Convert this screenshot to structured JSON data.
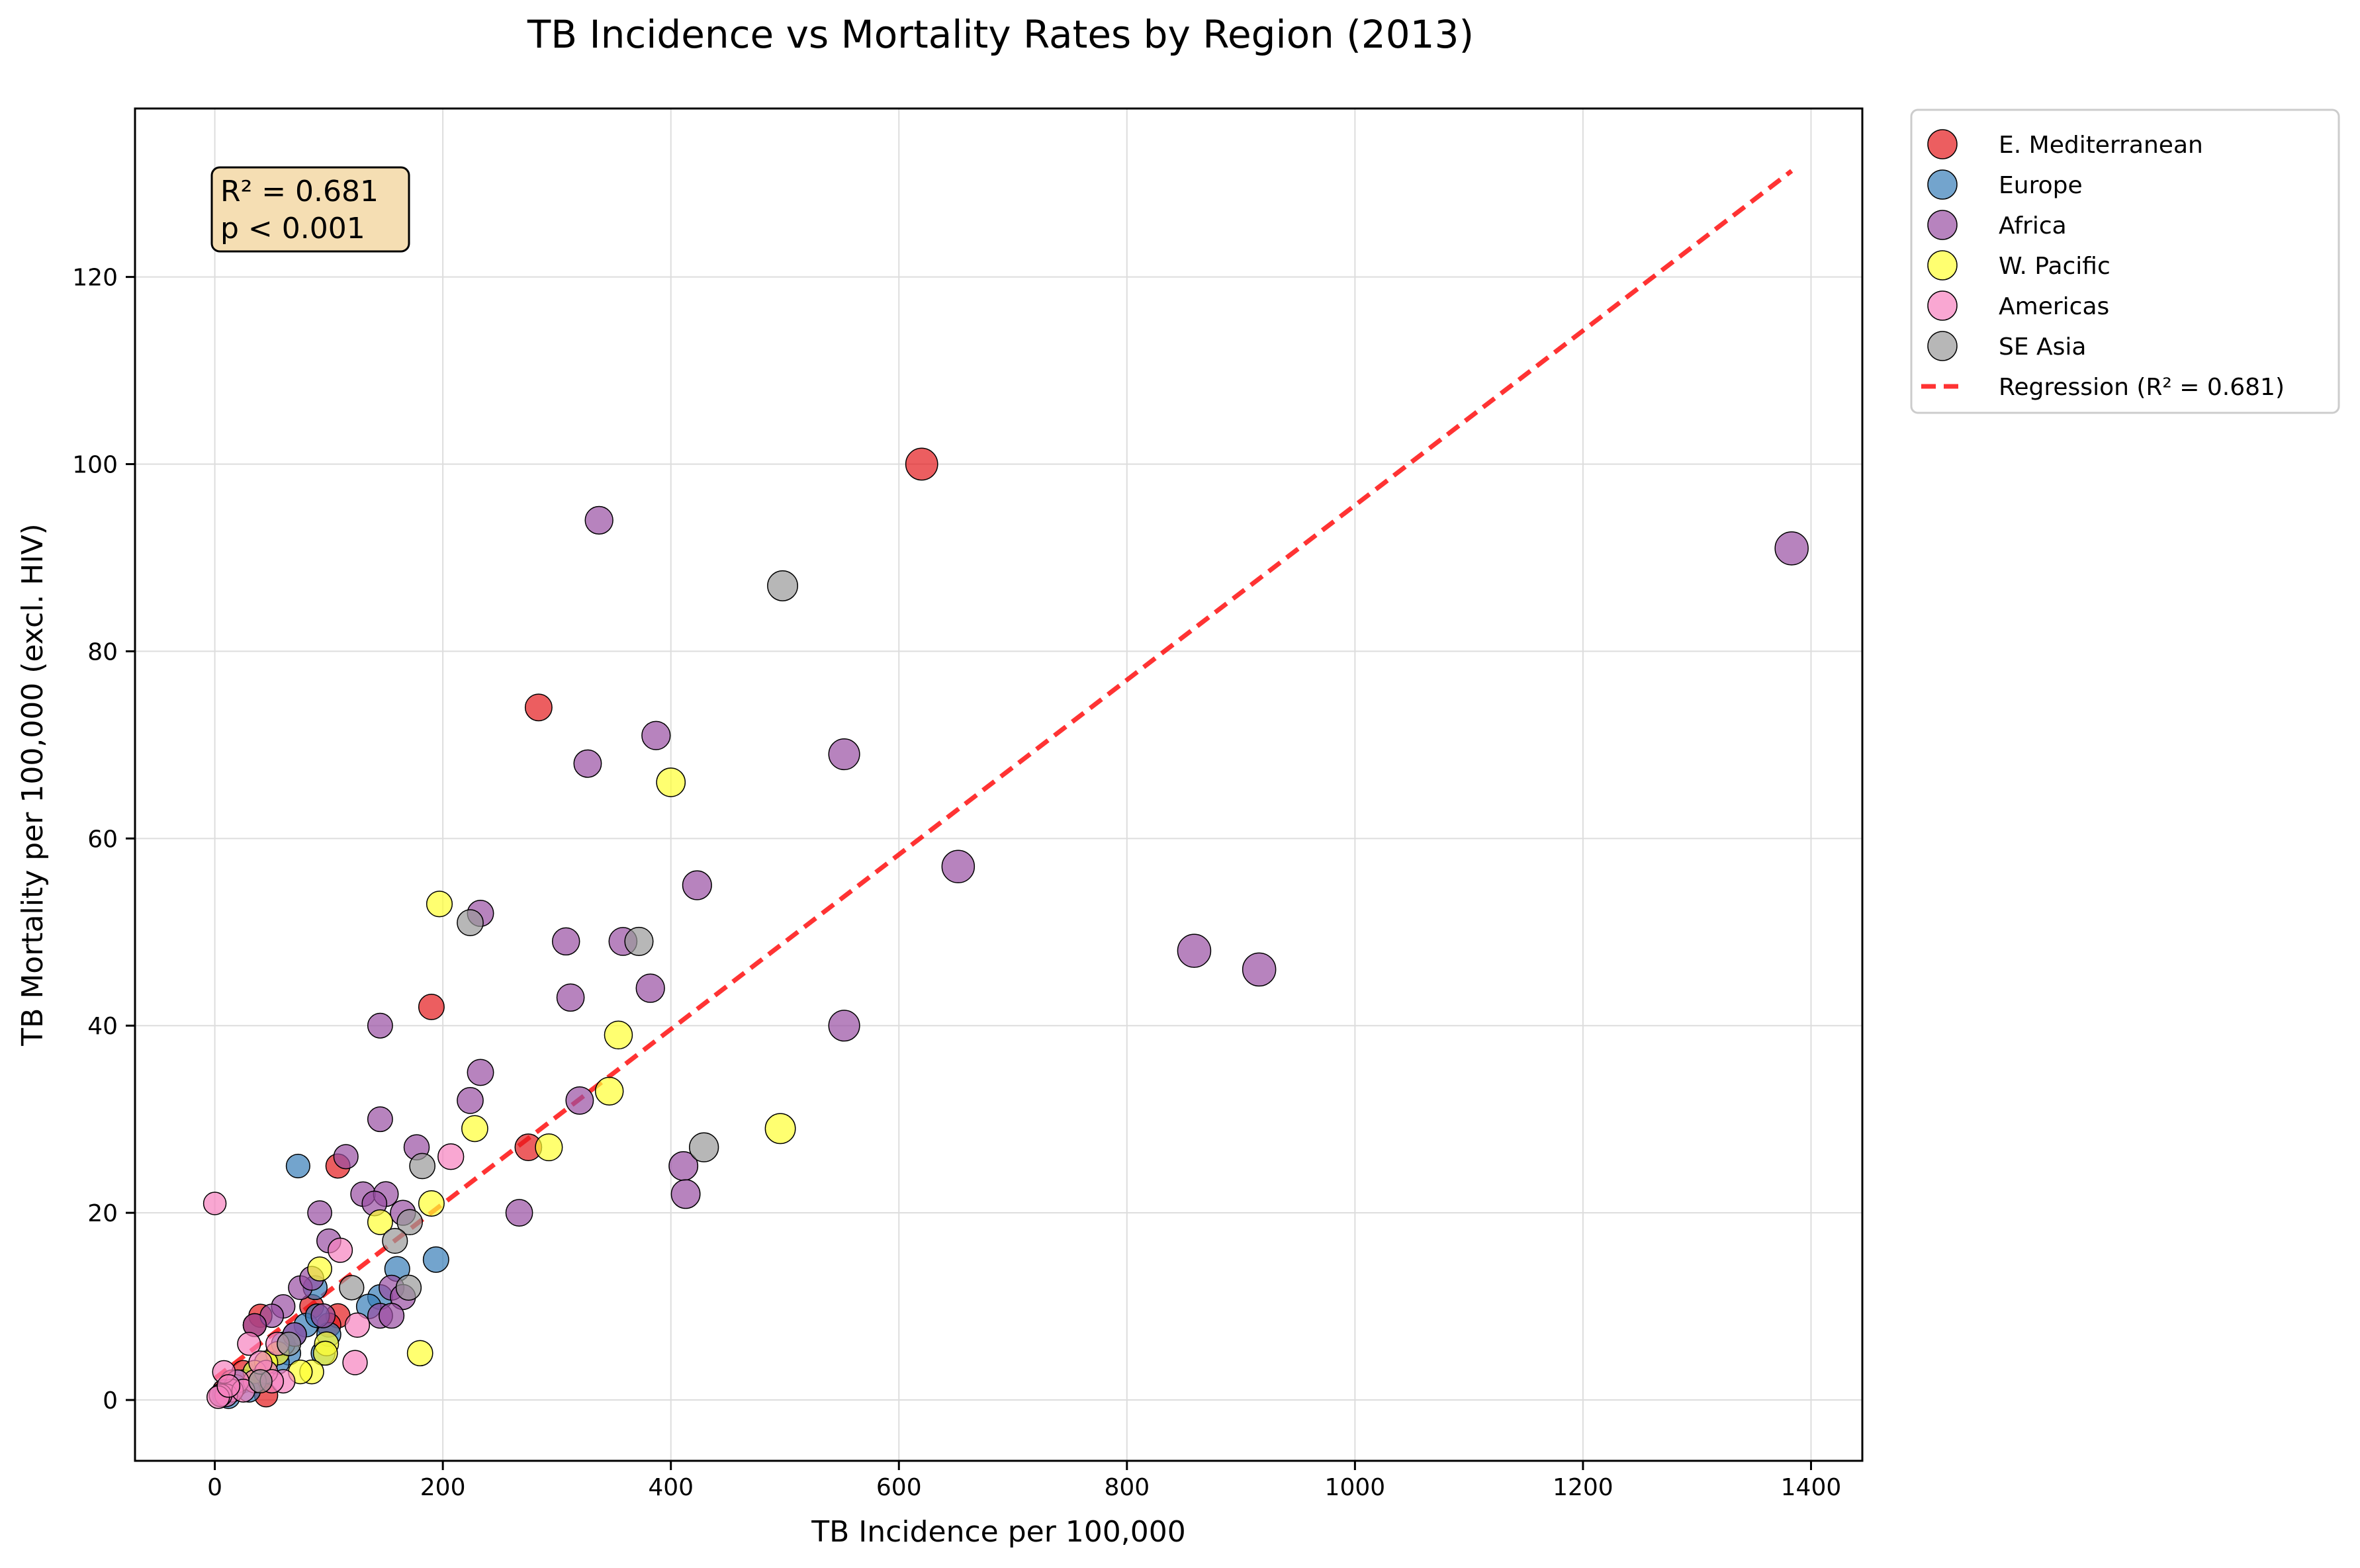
{
  "chart_data": {
    "type": "scatter",
    "title": "TB Incidence vs Mortality Rates by Region (2013)",
    "xlabel": "TB Incidence per 100,000",
    "ylabel": "TB Mortality per 100,000 (excl. HIV)",
    "xlim": [
      -70,
      1445
    ],
    "ylim": [
      -6.5,
      138
    ],
    "x_ticks": [
      0,
      200,
      400,
      600,
      800,
      1000,
      1200,
      1400
    ],
    "y_ticks": [
      0,
      20,
      40,
      60,
      80,
      100,
      120
    ],
    "grid": true,
    "legend_position": "outside top-right",
    "annotation": {
      "lines": [
        "R² = 0.681",
        "p < 0.001"
      ],
      "background": "#f5deb3"
    },
    "regression": {
      "label": "Regression (R² = 0.681)",
      "color": "#ff0000",
      "x_range": [
        0,
        1383
      ],
      "intercept": 2.3,
      "slope": 0.0933
    },
    "series": [
      {
        "name": "E. Mediterranean",
        "color": "#e41a1c",
        "points": [
          [
            620,
            100
          ],
          [
            284,
            74
          ],
          [
            190,
            42
          ],
          [
            108,
            25
          ],
          [
            275,
            27
          ],
          [
            40,
            9
          ],
          [
            108,
            9
          ],
          [
            35,
            8
          ],
          [
            100,
            8
          ],
          [
            85,
            10
          ],
          [
            55,
            5
          ],
          [
            25,
            3
          ],
          [
            40,
            2
          ],
          [
            8,
            1
          ],
          [
            45,
            0.5
          ],
          [
            15,
            2
          ]
        ]
      },
      {
        "name": "Europe",
        "color": "#377eb8",
        "points": [
          [
            73,
            25
          ],
          [
            194,
            15
          ],
          [
            160,
            14
          ],
          [
            145,
            11
          ],
          [
            135,
            10
          ],
          [
            88,
            12
          ],
          [
            100,
            7
          ],
          [
            95,
            5
          ],
          [
            80,
            8
          ],
          [
            65,
            5
          ],
          [
            55,
            4
          ],
          [
            45,
            4
          ],
          [
            35,
            3
          ],
          [
            25,
            2
          ],
          [
            20,
            2
          ],
          [
            15,
            1
          ],
          [
            10,
            1
          ],
          [
            8,
            0.5
          ],
          [
            12,
            0.3
          ],
          [
            5,
            0.5
          ],
          [
            30,
            1
          ],
          [
            18,
            1.5
          ],
          [
            60,
            6
          ],
          [
            70,
            7
          ],
          [
            90,
            9
          ]
        ]
      },
      {
        "name": "Africa",
        "color": "#984ea3",
        "points": [
          [
            1383,
            91
          ],
          [
            337,
            94
          ],
          [
            327,
            68
          ],
          [
            387,
            71
          ],
          [
            552,
            69
          ],
          [
            652,
            57
          ],
          [
            859,
            48
          ],
          [
            916,
            46
          ],
          [
            552,
            40
          ],
          [
            423,
            55
          ],
          [
            308,
            49
          ],
          [
            358,
            49
          ],
          [
            312,
            43
          ],
          [
            382,
            44
          ],
          [
            233,
            52
          ],
          [
            145,
            40
          ],
          [
            233,
            35
          ],
          [
            224,
            32
          ],
          [
            320,
            32
          ],
          [
            145,
            30
          ],
          [
            411,
            25
          ],
          [
            413,
            22
          ],
          [
            267,
            20
          ],
          [
            177,
            27
          ],
          [
            115,
            26
          ],
          [
            130,
            22
          ],
          [
            150,
            22
          ],
          [
            165,
            20
          ],
          [
            92,
            20
          ],
          [
            100,
            17
          ],
          [
            155,
            12
          ],
          [
            165,
            11
          ],
          [
            145,
            9
          ],
          [
            155,
            9
          ],
          [
            140,
            21
          ],
          [
            75,
            12
          ],
          [
            85,
            13
          ],
          [
            60,
            10
          ],
          [
            50,
            9
          ],
          [
            35,
            8
          ],
          [
            70,
            7
          ],
          [
            95,
            9
          ]
        ]
      },
      {
        "name": "W. Pacific",
        "color": "#ffff33",
        "points": [
          [
            197,
            53
          ],
          [
            400,
            66
          ],
          [
            354,
            39
          ],
          [
            346,
            33
          ],
          [
            496,
            29
          ],
          [
            228,
            29
          ],
          [
            293,
            27
          ],
          [
            190,
            21
          ],
          [
            145,
            19
          ],
          [
            92,
            14
          ],
          [
            180,
            5
          ],
          [
            98,
            6
          ],
          [
            97,
            5
          ],
          [
            85,
            3
          ],
          [
            75,
            3
          ],
          [
            55,
            5
          ],
          [
            45,
            4
          ],
          [
            35,
            3
          ]
        ]
      },
      {
        "name": "Americas",
        "color": "#f781bf",
        "points": [
          [
            0,
            21
          ],
          [
            207,
            26
          ],
          [
            110,
            16
          ],
          [
            125,
            8
          ],
          [
            123,
            4
          ],
          [
            60,
            2
          ],
          [
            45,
            3
          ],
          [
            30,
            6
          ],
          [
            35,
            2
          ],
          [
            20,
            2
          ],
          [
            15,
            1
          ],
          [
            10,
            0.5
          ],
          [
            5,
            0.5
          ],
          [
            8,
            3
          ],
          [
            25,
            1
          ],
          [
            40,
            4
          ],
          [
            55,
            6
          ],
          [
            3,
            0.3
          ],
          [
            12,
            1.5
          ],
          [
            50,
            2
          ]
        ]
      },
      {
        "name": "SE Asia",
        "color": "#999999",
        "points": [
          [
            498,
            87
          ],
          [
            224,
            51
          ],
          [
            372,
            49
          ],
          [
            429,
            27
          ],
          [
            182,
            25
          ],
          [
            171,
            19
          ],
          [
            158,
            17
          ],
          [
            120,
            12
          ],
          [
            170,
            12
          ],
          [
            65,
            6
          ],
          [
            40,
            2
          ]
        ]
      }
    ]
  }
}
